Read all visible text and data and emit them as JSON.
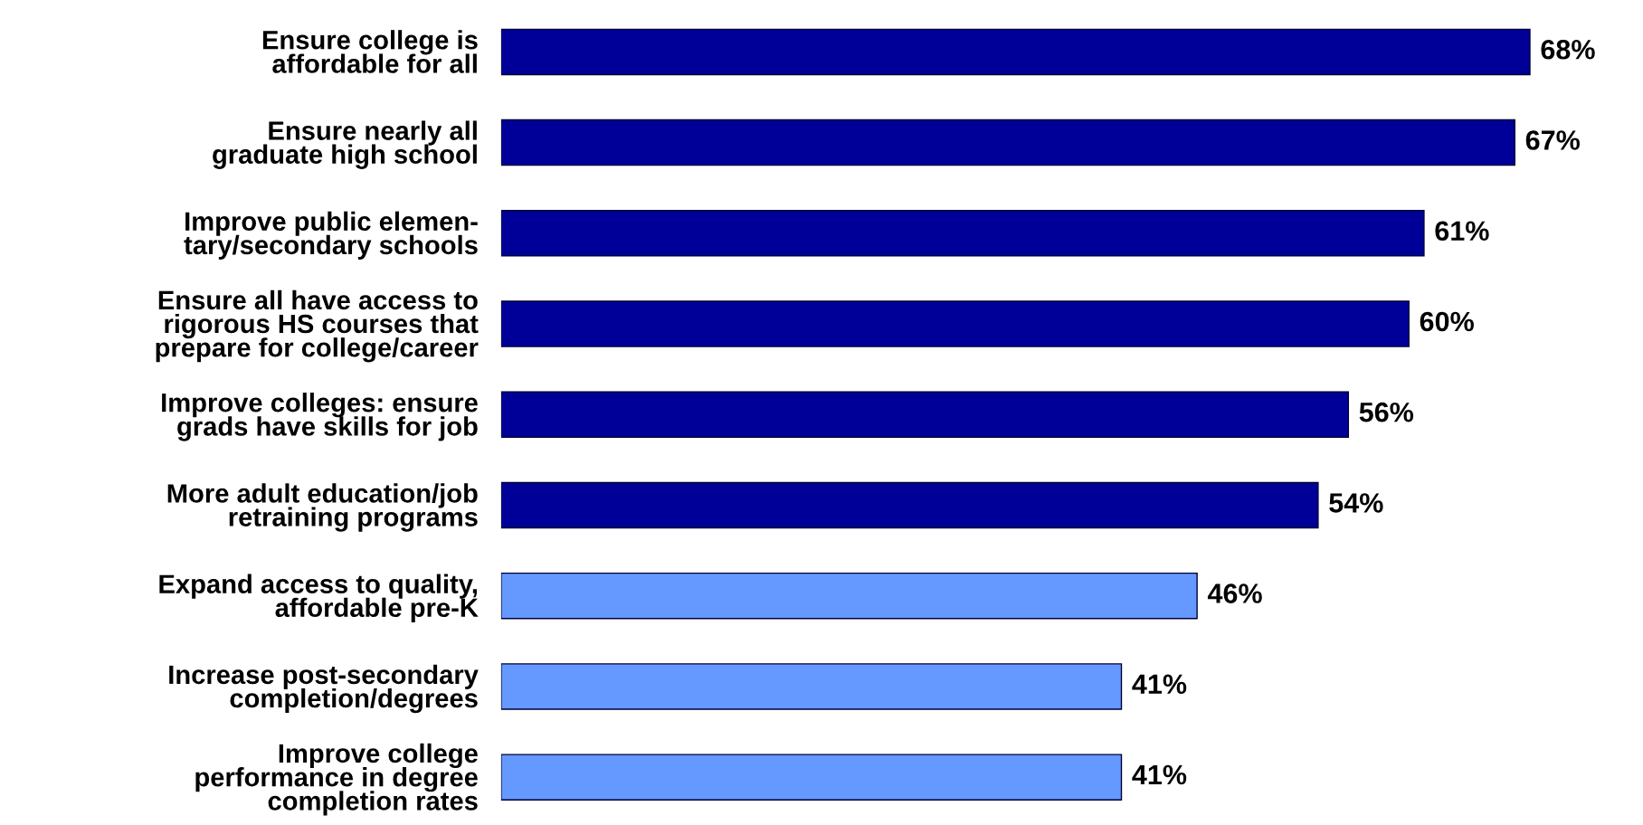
{
  "chart_data": {
    "type": "bar",
    "orientation": "horizontal",
    "value_labels": [
      "68%",
      "67%",
      "61%",
      "60%",
      "56%",
      "54%",
      "46%",
      "41%",
      "41%"
    ],
    "categories": [
      "Ensure college is\naffordable for all",
      "Ensure nearly all\ngraduate high school",
      "Improve public elemen-\ntary/secondary schools",
      "Ensure all have access to\nrigorous HS courses that\nprepare for college/career",
      "Improve colleges: ensure\ngrads have skills for job",
      "More adult education/job\nretraining programs",
      "Expand access to quality,\naffordable pre-K",
      "Increase post-secondary\ncompletion/degrees",
      "Improve college\nperformance in degree\ncompletion rates"
    ],
    "values": [
      68,
      67,
      61,
      60,
      56,
      54,
      46,
      41,
      41
    ],
    "colors": [
      "#000099",
      "#000099",
      "#000099",
      "#000099",
      "#000099",
      "#000099",
      "#6699ff",
      "#6699ff",
      "#6699ff"
    ]
  }
}
